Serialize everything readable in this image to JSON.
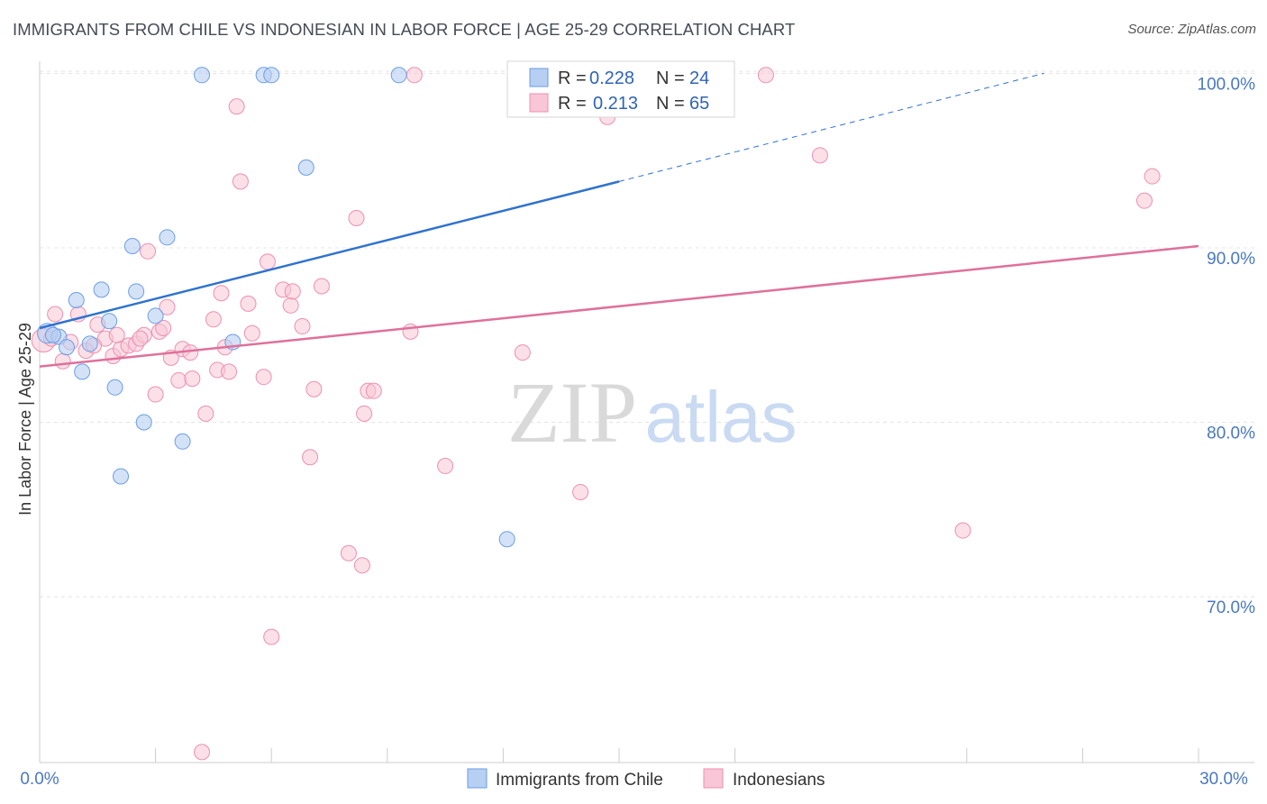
{
  "chart_data": {
    "type": "scatter",
    "title": "IMMIGRANTS FROM CHILE VS INDONESIAN IN LABOR FORCE | AGE 25-29 CORRELATION CHART",
    "source": "Source: ZipAtlas.com",
    "xlabel": "",
    "ylabel": "In Labor Force | Age 25-29",
    "xlim": [
      0,
      30
    ],
    "ylim": [
      60.5,
      101
    ],
    "x_tick_labels": [
      "0.0%",
      "30.0%"
    ],
    "y_ticks": [
      70,
      80,
      90,
      100
    ],
    "y_tick_labels": [
      "70.0%",
      "80.0%",
      "90.0%",
      "100.0%"
    ],
    "watermark": {
      "zip": "ZIP",
      "atlas": "atlas"
    },
    "colors": {
      "chile": "#6a9ee6",
      "chile_fill": "#b7cff2",
      "indo": "#ee8fb0",
      "indo_fill": "#f8c6d6",
      "chile_line": "#2f72d0",
      "indo_line": "#e0709a",
      "tick_label": "#4a78c0"
    },
    "legend": {
      "rows": [
        {
          "r_label": "R =",
          "r_value": "0.228",
          "n_label": "N =",
          "n_value": "24"
        },
        {
          "r_label": "R =",
          "r_value": "0.213",
          "n_label": "N =",
          "n_value": "65"
        }
      ]
    },
    "series": [
      {
        "name": "Immigrants from Chile",
        "trend": {
          "x": [
            0.0,
            15.0
          ],
          "y": [
            85.4,
            93.8
          ],
          "dashed_to": [
            26.0,
            100.0
          ]
        },
        "points": [
          {
            "x": 0.2,
            "y": 85.1,
            "big": true
          },
          {
            "x": 0.5,
            "y": 84.9
          },
          {
            "x": 0.7,
            "y": 84.3
          },
          {
            "x": 0.95,
            "y": 87.0
          },
          {
            "x": 1.1,
            "y": 82.9
          },
          {
            "x": 1.3,
            "y": 84.5
          },
          {
            "x": 1.6,
            "y": 87.6
          },
          {
            "x": 1.8,
            "y": 85.8
          },
          {
            "x": 1.95,
            "y": 82.0
          },
          {
            "x": 2.1,
            "y": 76.9
          },
          {
            "x": 2.4,
            "y": 90.1
          },
          {
            "x": 2.5,
            "y": 87.5
          },
          {
            "x": 2.7,
            "y": 80.0
          },
          {
            "x": 3.0,
            "y": 86.1
          },
          {
            "x": 3.3,
            "y": 90.6
          },
          {
            "x": 3.7,
            "y": 78.9
          },
          {
            "x": 4.2,
            "y": 99.9
          },
          {
            "x": 5.0,
            "y": 84.6
          },
          {
            "x": 5.8,
            "y": 99.9
          },
          {
            "x": 6.0,
            "y": 99.9
          },
          {
            "x": 6.9,
            "y": 94.6
          },
          {
            "x": 9.3,
            "y": 99.9
          },
          {
            "x": 12.1,
            "y": 73.3
          },
          {
            "x": 0.35,
            "y": 85.0
          }
        ]
      },
      {
        "name": "Indonesians",
        "trend": {
          "x": [
            0.0,
            30.0
          ],
          "y": [
            83.2,
            90.1
          ]
        },
        "points": [
          {
            "x": 0.1,
            "y": 84.7,
            "big": true
          },
          {
            "x": 0.4,
            "y": 86.2
          },
          {
            "x": 0.6,
            "y": 83.5
          },
          {
            "x": 0.8,
            "y": 84.6
          },
          {
            "x": 1.0,
            "y": 86.2
          },
          {
            "x": 1.2,
            "y": 84.1
          },
          {
            "x": 1.5,
            "y": 85.6
          },
          {
            "x": 1.7,
            "y": 84.8
          },
          {
            "x": 1.9,
            "y": 83.8
          },
          {
            "x": 2.1,
            "y": 84.2
          },
          {
            "x": 2.3,
            "y": 84.4
          },
          {
            "x": 2.5,
            "y": 84.5
          },
          {
            "x": 2.7,
            "y": 85.0
          },
          {
            "x": 2.8,
            "y": 89.8
          },
          {
            "x": 3.0,
            "y": 81.6
          },
          {
            "x": 3.1,
            "y": 85.2
          },
          {
            "x": 3.3,
            "y": 86.6
          },
          {
            "x": 3.4,
            "y": 83.7
          },
          {
            "x": 3.6,
            "y": 82.4
          },
          {
            "x": 3.7,
            "y": 84.2
          },
          {
            "x": 3.9,
            "y": 84.0
          },
          {
            "x": 3.95,
            "y": 82.5
          },
          {
            "x": 4.3,
            "y": 80.5
          },
          {
            "x": 4.5,
            "y": 85.9
          },
          {
            "x": 4.6,
            "y": 83.0
          },
          {
            "x": 4.7,
            "y": 87.4
          },
          {
            "x": 4.9,
            "y": 82.9
          },
          {
            "x": 5.1,
            "y": 98.1
          },
          {
            "x": 5.2,
            "y": 93.8
          },
          {
            "x": 5.4,
            "y": 86.8
          },
          {
            "x": 5.5,
            "y": 85.1
          },
          {
            "x": 5.8,
            "y": 82.6
          },
          {
            "x": 5.9,
            "y": 89.2
          },
          {
            "x": 6.0,
            "y": 67.7
          },
          {
            "x": 6.3,
            "y": 87.6
          },
          {
            "x": 6.5,
            "y": 86.7
          },
          {
            "x": 6.55,
            "y": 87.5
          },
          {
            "x": 6.8,
            "y": 85.5
          },
          {
            "x": 7.0,
            "y": 78.0
          },
          {
            "x": 7.1,
            "y": 81.9
          },
          {
            "x": 7.3,
            "y": 87.8
          },
          {
            "x": 8.0,
            "y": 72.5
          },
          {
            "x": 8.2,
            "y": 91.7
          },
          {
            "x": 8.35,
            "y": 71.8
          },
          {
            "x": 8.4,
            "y": 80.5
          },
          {
            "x": 8.5,
            "y": 81.8
          },
          {
            "x": 8.65,
            "y": 81.8
          },
          {
            "x": 9.6,
            "y": 85.2
          },
          {
            "x": 9.7,
            "y": 99.9
          },
          {
            "x": 10.5,
            "y": 77.5
          },
          {
            "x": 12.5,
            "y": 84.0
          },
          {
            "x": 14.0,
            "y": 76.0
          },
          {
            "x": 14.7,
            "y": 97.5
          },
          {
            "x": 18.8,
            "y": 99.9
          },
          {
            "x": 20.2,
            "y": 95.3
          },
          {
            "x": 23.9,
            "y": 73.8
          },
          {
            "x": 28.6,
            "y": 92.7
          },
          {
            "x": 28.8,
            "y": 94.1
          },
          {
            "x": 4.2,
            "y": 61.1
          },
          {
            "x": 2.0,
            "y": 85.0
          },
          {
            "x": 1.4,
            "y": 84.4
          },
          {
            "x": 2.6,
            "y": 84.8
          },
          {
            "x": 0.3,
            "y": 84.8
          },
          {
            "x": 4.8,
            "y": 84.3
          },
          {
            "x": 3.2,
            "y": 85.4
          }
        ]
      }
    ]
  }
}
